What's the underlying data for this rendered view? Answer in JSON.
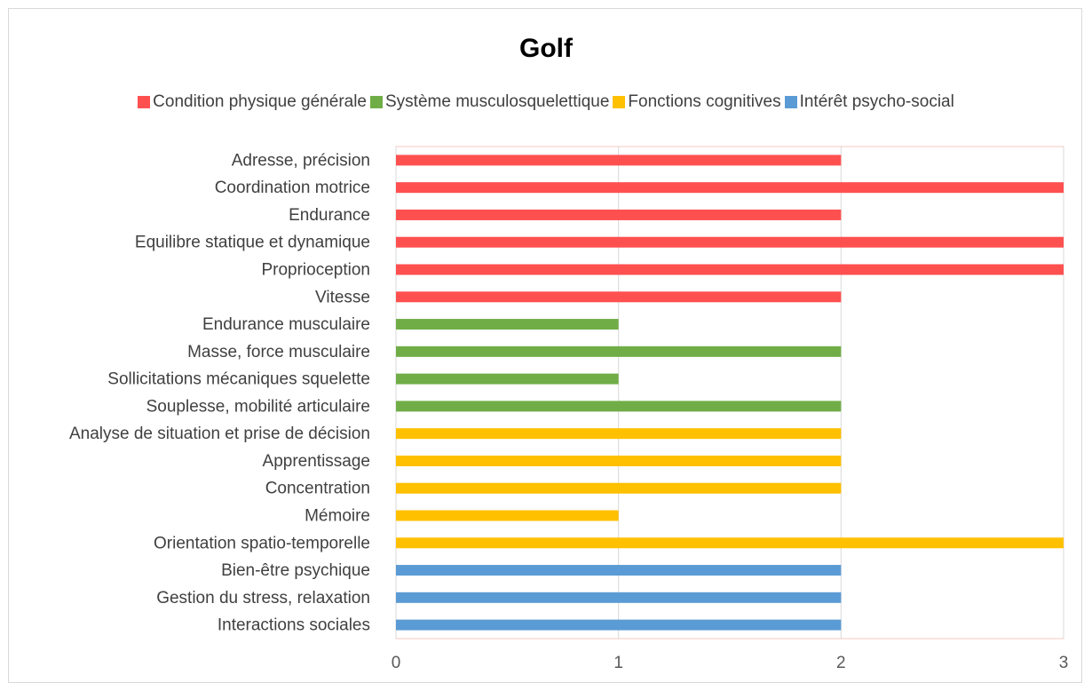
{
  "chart_data": {
    "type": "bar",
    "orientation": "horizontal",
    "title": "Golf",
    "xlabel": "",
    "ylabel": "",
    "xlim": [
      0,
      3
    ],
    "x_ticks": [
      0,
      1,
      2,
      3
    ],
    "grid": true,
    "legend_position": "top",
    "legend": [
      {
        "name": "Condition physique générale",
        "color": "#ff5050"
      },
      {
        "name": "Système musculosquelettique",
        "color": "#70ad47"
      },
      {
        "name": "Fonctions cognitives",
        "color": "#ffc000"
      },
      {
        "name": "Intérêt psycho-social",
        "color": "#5b9bd5"
      }
    ],
    "categories": [
      "Adresse, précision",
      "Coordination motrice",
      "Endurance",
      "Equilibre statique et dynamique",
      "Proprioception",
      "Vitesse",
      "Endurance musculaire",
      "Masse,  force musculaire",
      "Sollicitations mécaniques squelette",
      "Souplesse, mobilité articulaire",
      "Analyse de situation et prise de décision",
      "Apprentissage",
      "Concentration",
      "Mémoire",
      "Orientation spatio-temporelle",
      "Bien-être psychique",
      "Gestion du stress, relaxation",
      "Interactions sociales"
    ],
    "values": [
      2,
      3,
      2,
      3,
      3,
      2,
      1,
      2,
      1,
      2,
      2,
      2,
      2,
      1,
      3,
      2,
      2,
      2
    ],
    "groups": [
      0,
      0,
      0,
      0,
      0,
      0,
      1,
      1,
      1,
      1,
      2,
      2,
      2,
      2,
      2,
      3,
      3,
      3
    ]
  }
}
